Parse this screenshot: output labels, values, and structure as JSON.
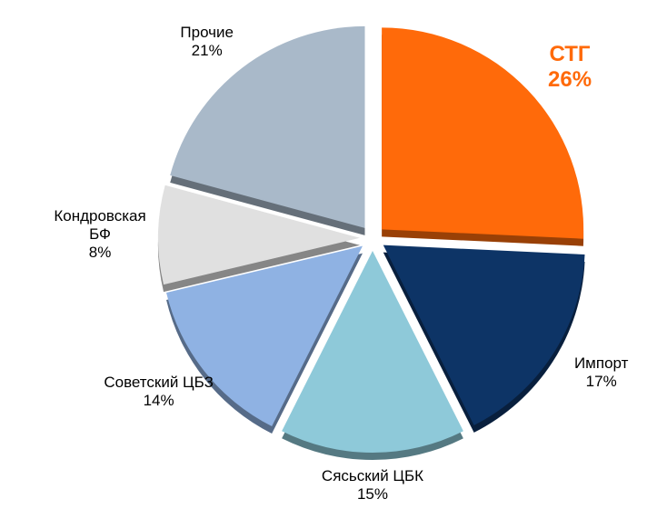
{
  "chart_data": {
    "type": "pie",
    "categories": [
      "СТГ",
      "Импорт",
      "Сясьский ЦБК",
      "Советский ЦБЗ",
      "Кондровская БФ",
      "Прочие"
    ],
    "values": [
      26,
      17,
      15,
      14,
      8,
      21
    ],
    "value_labels": [
      "26%",
      "17%",
      "15%",
      "14%",
      "8%",
      "21%"
    ],
    "colors": [
      "#ff6a0a",
      "#0d3466",
      "#8ec9d9",
      "#8fb2e3",
      "#e0e0e0",
      "#a9b9c9"
    ],
    "label_colors": [
      "#ff6a0a",
      "#000000",
      "#000000",
      "#000000",
      "#000000",
      "#000000"
    ],
    "label_bold": [
      true,
      false,
      false,
      false,
      false,
      false
    ]
  }
}
